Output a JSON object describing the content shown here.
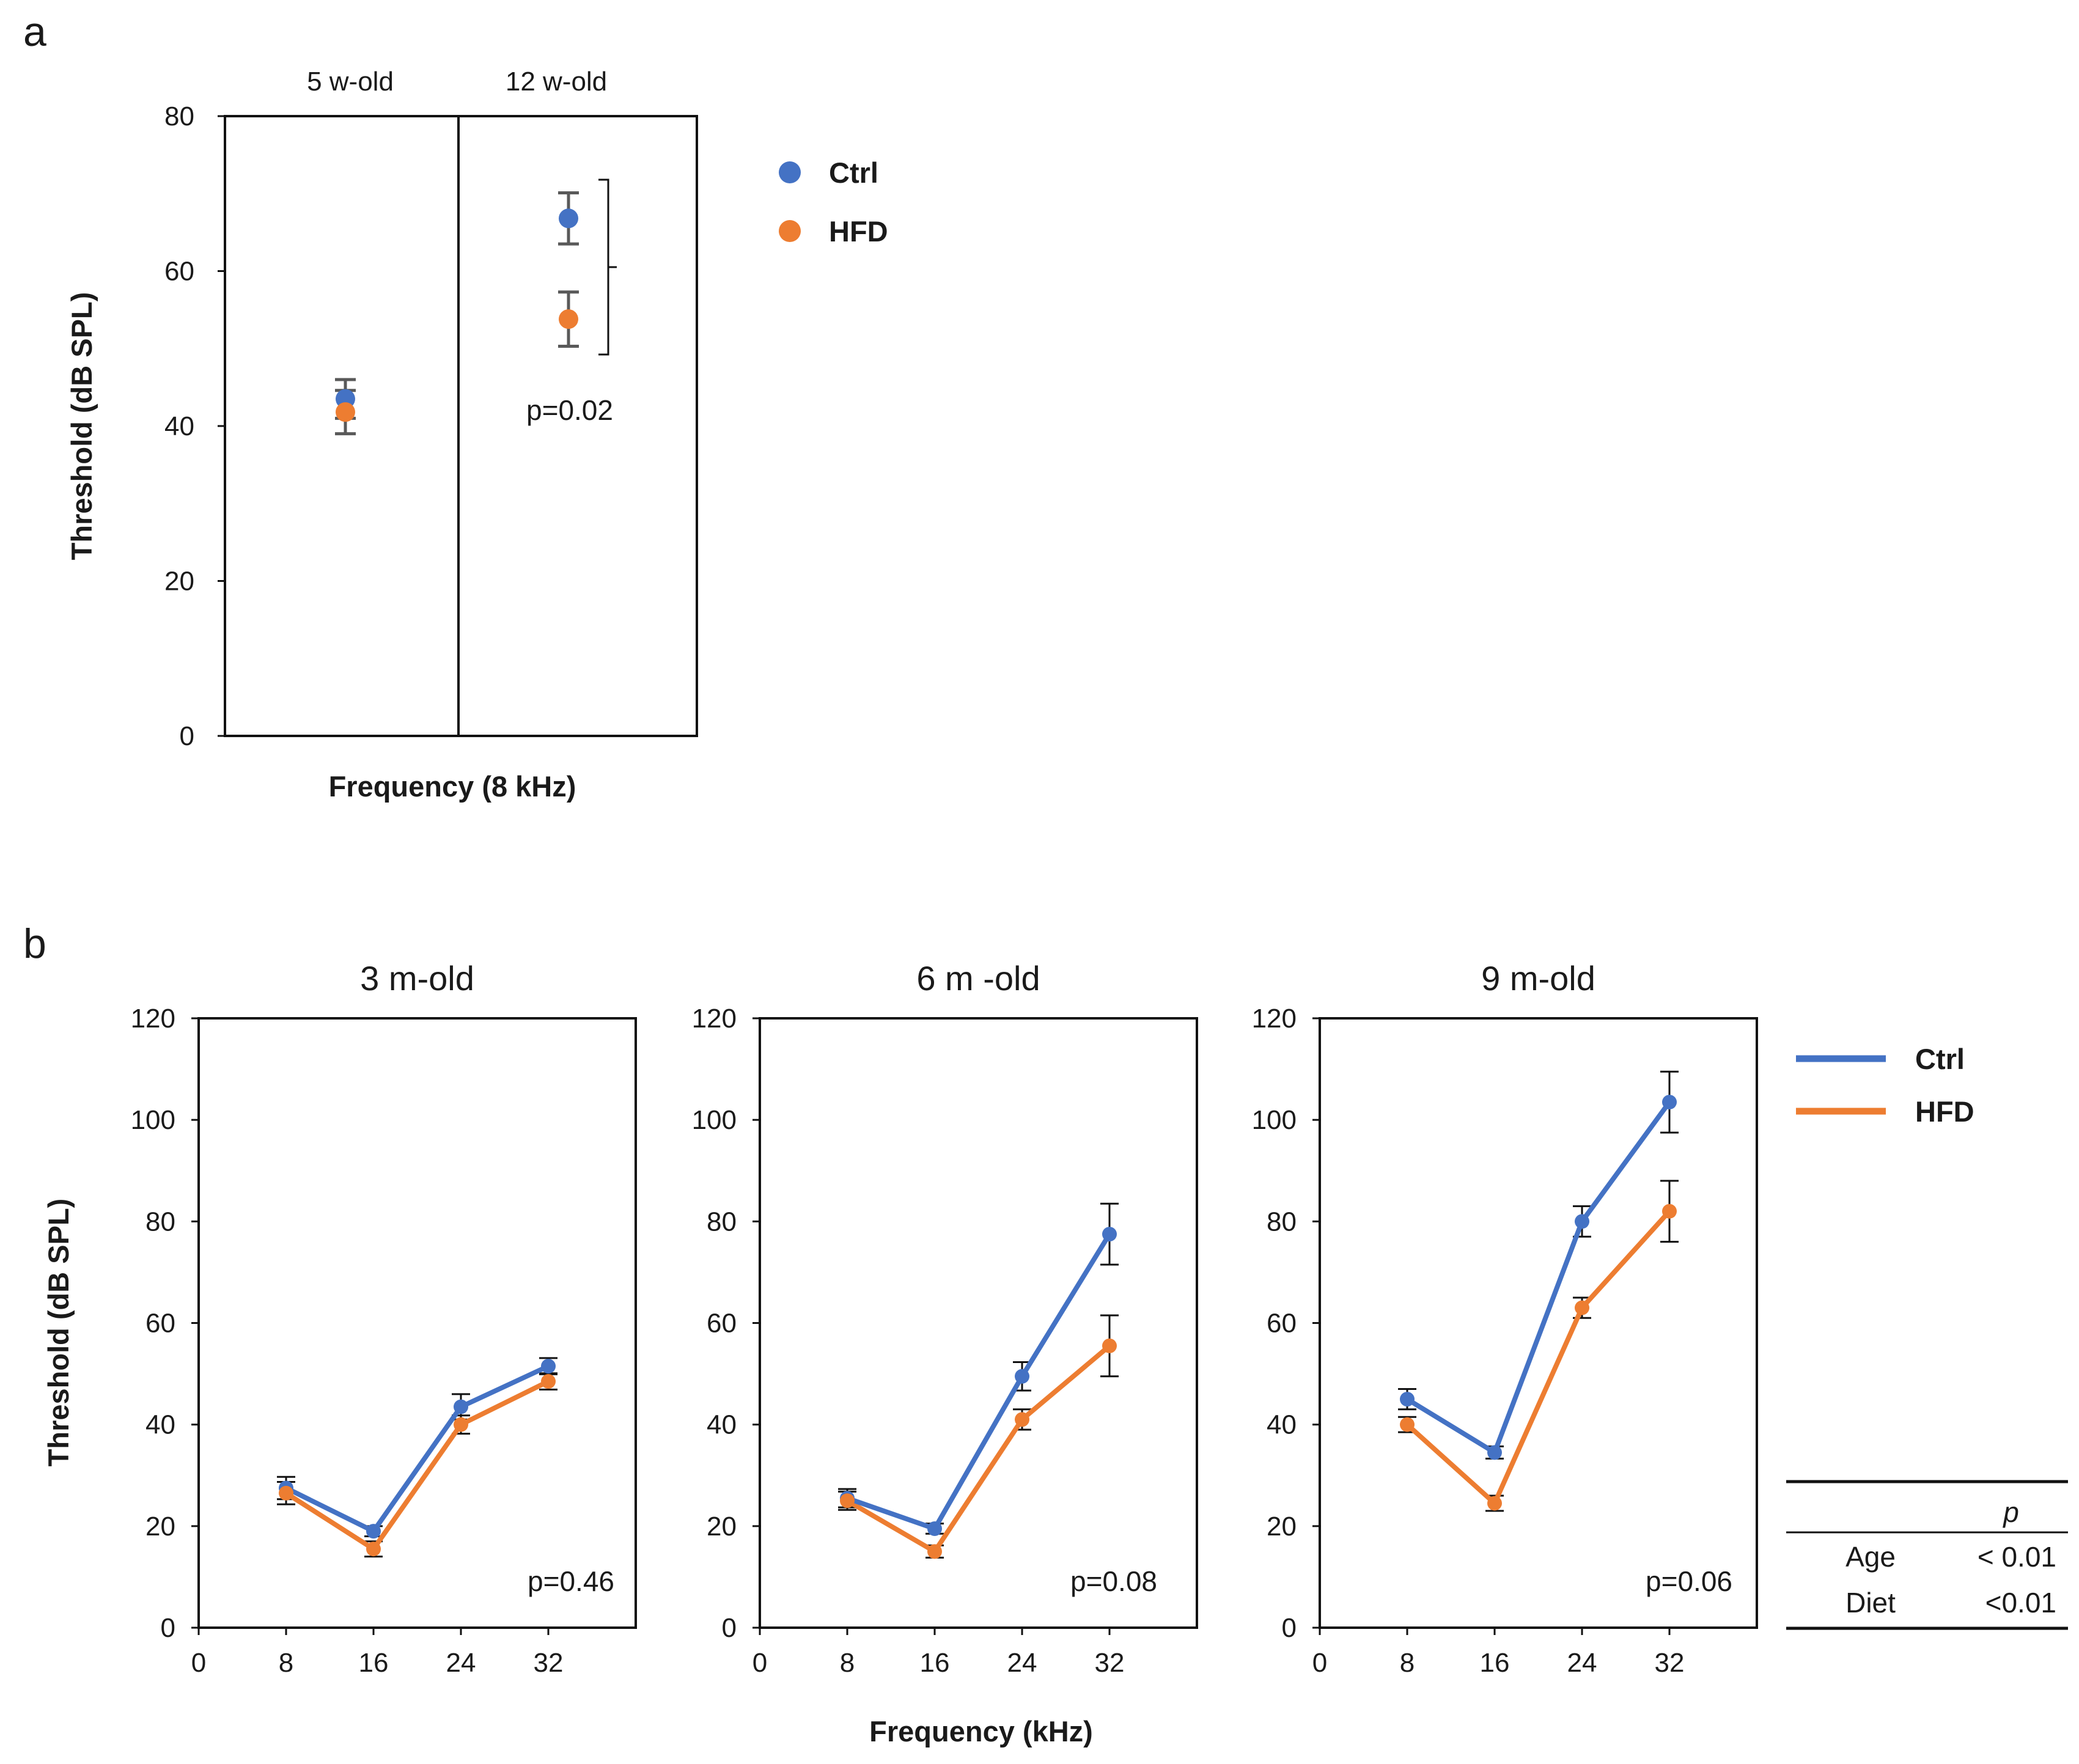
{
  "panel_a": {
    "letter": "a"
  },
  "panel_b": {
    "letter": "b"
  },
  "chart_data": [
    {
      "type": "scatter",
      "panel": "a",
      "column_headers": [
        "5 w-old",
        "12 w-old"
      ],
      "ylabel": "Threshold (dB SPL)",
      "xlabel": "Frequency (8 kHz)",
      "ylim": [
        0,
        80
      ],
      "yticks": [
        0,
        20,
        40,
        60,
        80
      ],
      "series": [
        {
          "name": "Ctrl",
          "color": "#4472C4",
          "values": [
            43.5,
            66.8
          ],
          "errors": [
            2.5,
            3.3
          ]
        },
        {
          "name": "HFD",
          "color": "#ED7D31",
          "values": [
            41.8,
            53.8
          ],
          "errors": [
            2.8,
            3.5
          ]
        }
      ],
      "annotation": "p=0.02",
      "legend": {
        "position": "right",
        "entries": [
          "Ctrl",
          "HFD"
        ]
      }
    },
    {
      "type": "line",
      "panel": "b",
      "title": "3 m-old",
      "x": [
        8,
        16,
        24,
        32
      ],
      "xlim": [
        0,
        40
      ],
      "xticks": [
        0,
        8,
        16,
        24,
        32
      ],
      "ylim": [
        0,
        120
      ],
      "yticks": [
        0,
        20,
        40,
        60,
        80,
        100,
        120
      ],
      "ylabel": "Threshold (dB SPL)",
      "series": [
        {
          "name": "Ctrl",
          "color": "#4472C4",
          "values": [
            27.5,
            19,
            43.5,
            51.5
          ],
          "errors": [
            2.2,
            1.0,
            2.5,
            1.6
          ]
        },
        {
          "name": "HFD",
          "color": "#ED7D31",
          "values": [
            26.5,
            15.5,
            40,
            48.5
          ],
          "errors": [
            2.2,
            1.5,
            1.8,
            1.6
          ]
        }
      ],
      "annotation": "p=0.46"
    },
    {
      "type": "line",
      "panel": "b",
      "title": "6 m -old",
      "x": [
        8,
        16,
        24,
        32
      ],
      "xlim": [
        0,
        40
      ],
      "xticks": [
        0,
        8,
        16,
        24,
        32
      ],
      "ylim": [
        0,
        120
      ],
      "yticks": [
        0,
        20,
        40,
        60,
        80,
        100,
        120
      ],
      "series": [
        {
          "name": "Ctrl",
          "color": "#4472C4",
          "values": [
            25.5,
            19.5,
            49.5,
            77.5
          ],
          "errors": [
            1.8,
            1.0,
            2.8,
            6.0
          ]
        },
        {
          "name": "HFD",
          "color": "#ED7D31",
          "values": [
            25,
            15,
            41,
            55.5
          ],
          "errors": [
            1.8,
            1.2,
            2.0,
            6.0
          ]
        }
      ],
      "annotation": "p=0.08"
    },
    {
      "type": "line",
      "panel": "b",
      "title": "9 m-old",
      "x": [
        8,
        16,
        24,
        32
      ],
      "xlim": [
        0,
        40
      ],
      "xticks": [
        0,
        8,
        16,
        24,
        32
      ],
      "ylim": [
        0,
        120
      ],
      "yticks": [
        0,
        20,
        40,
        60,
        80,
        100,
        120
      ],
      "series": [
        {
          "name": "Ctrl",
          "color": "#4472C4",
          "values": [
            45,
            34.5,
            80,
            103.5
          ],
          "errors": [
            2.0,
            1.2,
            3.0,
            6.0
          ]
        },
        {
          "name": "HFD",
          "color": "#ED7D31",
          "values": [
            40,
            24.5,
            63,
            82
          ],
          "errors": [
            1.5,
            1.5,
            2.0,
            6.0
          ]
        }
      ],
      "annotation": "p=0.06",
      "xlabel_shared": "Frequency (kHz)",
      "legend": {
        "position": "right",
        "entries": [
          "Ctrl",
          "HFD"
        ]
      }
    }
  ],
  "stats_table": {
    "header": "p",
    "rows": [
      {
        "label": "Age",
        "value": "< 0.01"
      },
      {
        "label": "Diet",
        "value": "<0.01"
      }
    ]
  }
}
